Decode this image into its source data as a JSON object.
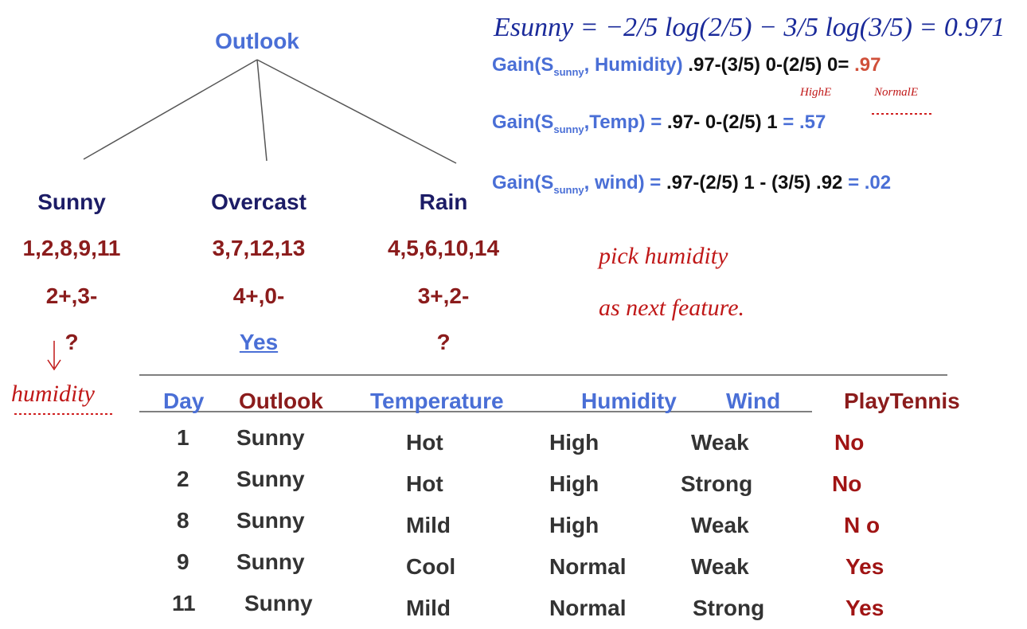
{
  "tree": {
    "root": "Outlook",
    "branches": [
      {
        "label": "Sunny",
        "days": "1,2,8,9,11",
        "counts": "2+,3-",
        "result": "?"
      },
      {
        "label": "Overcast",
        "days": "3,7,12,13",
        "counts": "4+,0-",
        "result": "Yes"
      },
      {
        "label": "Rain",
        "days": "4,5,6,10,14",
        "counts": "3+,2-",
        "result": "?"
      }
    ]
  },
  "notes": {
    "entropy": "Esunny = −2/5 log(2/5) − 3/5 log(3/5) = 0.971",
    "high": "HighE",
    "normal": "NormalE",
    "pick": [
      "pick humidity",
      "as next feature."
    ],
    "humidity": "humidity"
  },
  "gains": [
    {
      "head": "Gain(S",
      "sub": "sunny",
      "attr": ", Humidity)",
      "expr": " .97-(3/5) 0-(2/5) 0=",
      "result": " .97"
    },
    {
      "head": "Gain(S",
      "sub": "sunny",
      "attr": ",Temp) =",
      "expr": " .97- 0-(2/5) 1 ",
      "result": "= .57"
    },
    {
      "head": "Gain(S",
      "sub": "sunny",
      "attr": ", wind) =",
      "expr": " .97-(2/5) 1 - (3/5) .92 ",
      "result": "= .02"
    }
  ],
  "table": {
    "header": [
      "Day",
      "Outlook",
      "Temperature",
      "Humidity",
      "Wind",
      "PlayTennis"
    ],
    "rows": [
      [
        "1",
        "Sunny",
        "Hot",
        "High",
        "Weak",
        "No"
      ],
      [
        "2",
        "Sunny",
        "Hot",
        "High",
        "Strong",
        "No"
      ],
      [
        "8",
        "Sunny",
        "Mild",
        "High",
        "Weak",
        "N o"
      ],
      [
        "9",
        "Sunny",
        "Cool",
        "Normal",
        "Weak",
        "Yes"
      ],
      [
        "11",
        "Sunny",
        "Mild",
        "Normal",
        "Strong",
        "Yes"
      ]
    ]
  }
}
